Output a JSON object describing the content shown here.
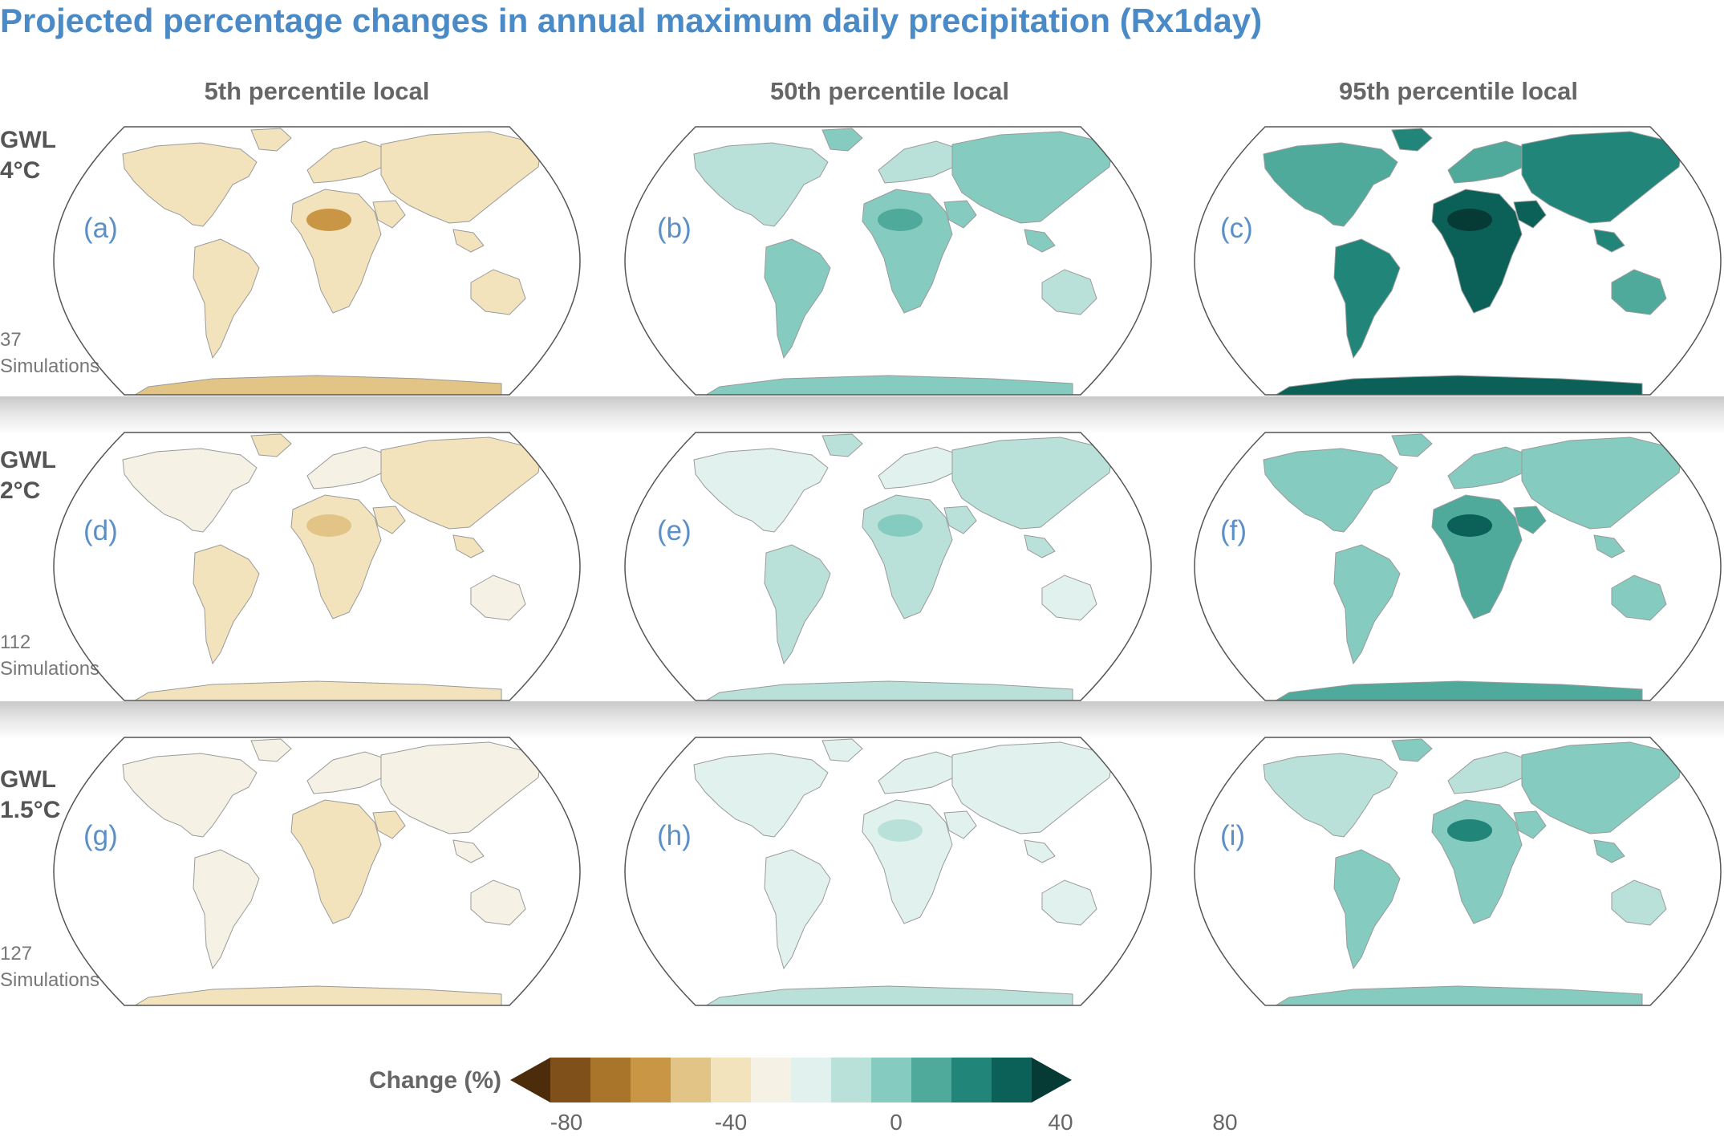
{
  "title": "Projected percentage changes in annual maximum daily precipitation (Rx1day)",
  "columns": [
    "5th percentile local",
    "50th percentile local",
    "95th percentile local"
  ],
  "rows": [
    {
      "gwl_line1": "GWL",
      "gwl_line2": "4°C",
      "sims_count": "37",
      "sims_label": "Simulations"
    },
    {
      "gwl_line1": "GWL",
      "gwl_line2": "2°C",
      "sims_count": "112",
      "sims_label": "Simulations"
    },
    {
      "gwl_line1": "GWL",
      "gwl_line2": "1.5°C",
      "sims_count": "127",
      "sims_label": "Simulations"
    }
  ],
  "panels": [
    {
      "label": "(a)",
      "row": 0,
      "col": 0,
      "intensity": -0.35
    },
    {
      "label": "(b)",
      "row": 0,
      "col": 1,
      "intensity": 0.45
    },
    {
      "label": "(c)",
      "row": 0,
      "col": 2,
      "intensity": 1.0
    },
    {
      "label": "(d)",
      "row": 1,
      "col": 0,
      "intensity": -0.25
    },
    {
      "label": "(e)",
      "row": 1,
      "col": 1,
      "intensity": 0.25
    },
    {
      "label": "(f)",
      "row": 1,
      "col": 2,
      "intensity": 0.6
    },
    {
      "label": "(g)",
      "row": 2,
      "col": 0,
      "intensity": -0.2
    },
    {
      "label": "(h)",
      "row": 2,
      "col": 1,
      "intensity": 0.18
    },
    {
      "label": "(i)",
      "row": 2,
      "col": 2,
      "intensity": 0.5
    }
  ],
  "colorbar": {
    "title": "Change (%)",
    "ticks": [
      "-80",
      "-40",
      "0",
      "40",
      "80"
    ],
    "colors": [
      "#4d2c0c",
      "#80501a",
      "#a8752b",
      "#c99646",
      "#e3c487",
      "#f3e3bc",
      "#f5f1e4",
      "#e0f1ee",
      "#b9e1da",
      "#86cbbf",
      "#4faa9c",
      "#21857a",
      "#0b6058",
      "#063b35"
    ]
  }
}
